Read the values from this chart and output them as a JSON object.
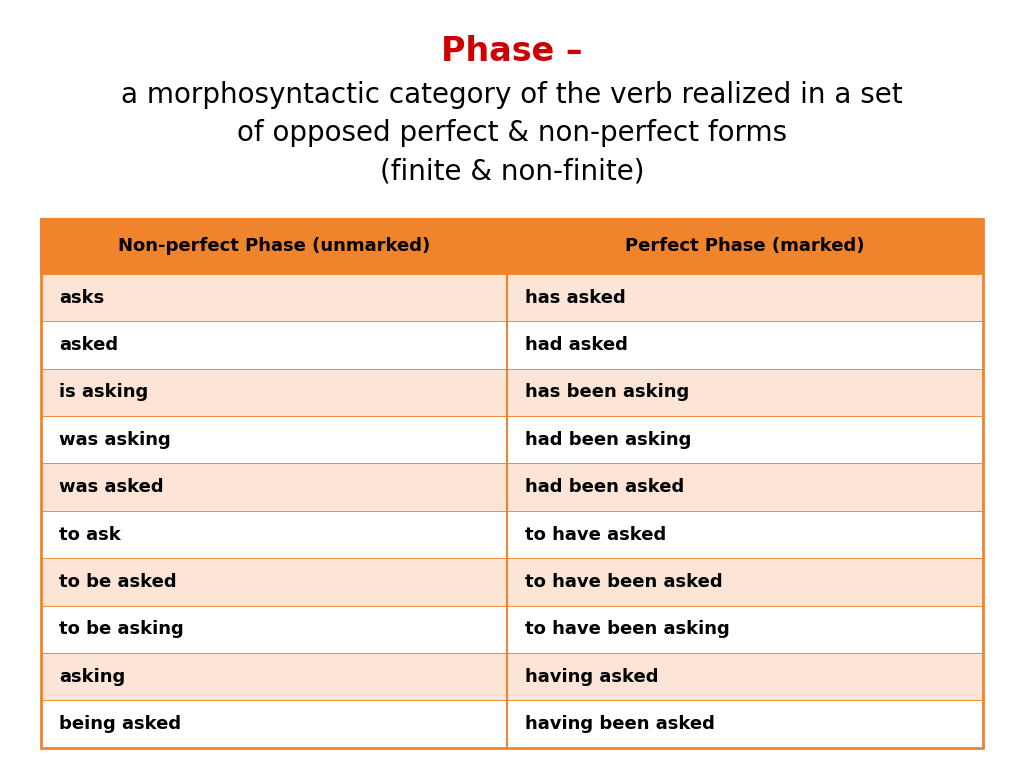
{
  "title_line1": "Phase –",
  "title_line1_color": "#cc0000",
  "subtitle_line1": "a morphosyntactic category of the verb realized in a set",
  "subtitle_line2": "of opposed perfect & non-perfect forms",
  "subtitle_line3": "(finite & non-finite)",
  "subtitle_color": "#000000",
  "header": [
    "Non-perfect Phase (unmarked)",
    "Perfect Phase (marked)"
  ],
  "header_bg": "#f0842c",
  "header_text_color": "#000000",
  "rows": [
    [
      "asks",
      "has asked"
    ],
    [
      "asked",
      "had asked"
    ],
    [
      "is asking",
      "has been asking"
    ],
    [
      "was asking",
      "had been asking"
    ],
    [
      "was asked",
      "had been asked"
    ],
    [
      "to ask",
      "to have asked"
    ],
    [
      "to be asked",
      "to have been asked"
    ],
    [
      "to be asking",
      "to have been asking"
    ],
    [
      "asking",
      "having asked"
    ],
    [
      "being asked",
      "having been asked"
    ]
  ],
  "row_bg_odd": "#fce4d6",
  "row_bg_even": "#ffffff",
  "table_border_color": "#f0842c",
  "background_color": "#ffffff",
  "cell_text_color": "#000000",
  "title_fontsize": 24,
  "subtitle_fontsize": 20,
  "header_fontsize": 13,
  "cell_fontsize": 13
}
